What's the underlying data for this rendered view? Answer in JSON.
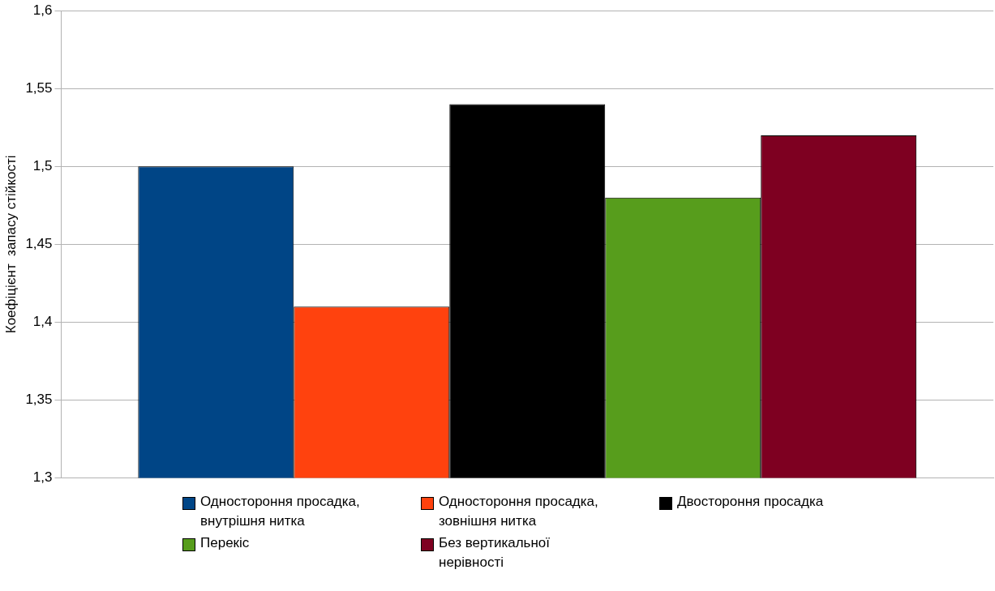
{
  "chart_data": {
    "type": "bar",
    "ylabel": "Коефіцієнт  запасу стійкості",
    "categories": [
      null
    ],
    "series": [
      {
        "name": "Одностороння просадка, внутрішня нитка",
        "color": "#004586",
        "values": [
          1.5
        ]
      },
      {
        "name": "Одностороння просадка, зовнішня нитка",
        "color": "#ff420e",
        "values": [
          1.41
        ]
      },
      {
        "name": "Двостороння просадка",
        "color": "#000000",
        "values": [
          1.54
        ]
      },
      {
        "name": "Перекіс",
        "color": "#579d1c",
        "values": [
          1.48
        ]
      },
      {
        "name": "Без вертикальної нерівності",
        "color": "#7e0021",
        "values": [
          1.52
        ]
      }
    ],
    "ylim": [
      1.3,
      1.6
    ],
    "yticks": [
      {
        "value": 1.3,
        "label": "1,3"
      },
      {
        "value": 1.35,
        "label": "1,35"
      },
      {
        "value": 1.4,
        "label": "1,4"
      },
      {
        "value": 1.45,
        "label": "1,45"
      },
      {
        "value": 1.5,
        "label": "1,5"
      },
      {
        "value": 1.55,
        "label": "1,55"
      },
      {
        "value": 1.6,
        "label": "1,6"
      }
    ],
    "grid": "y",
    "legend": "bottom"
  }
}
